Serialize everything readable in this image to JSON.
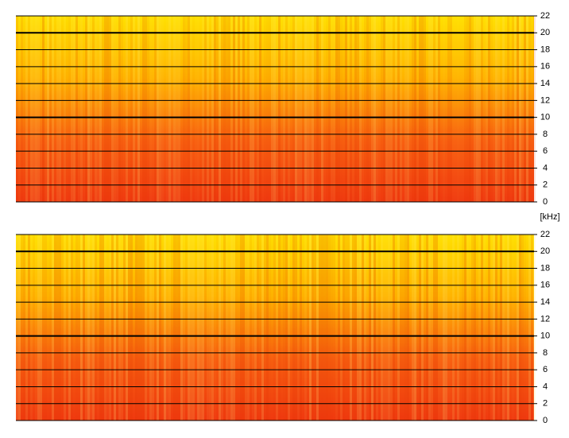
{
  "chart_data": [
    {
      "type": "spectrogram",
      "ylabel": "[kHz]",
      "ylim": [
        0,
        22
      ],
      "yticks": [
        0,
        2,
        4,
        6,
        8,
        10,
        12,
        14,
        16,
        18,
        20,
        22
      ],
      "grid": true,
      "colors": [
        "#ffe000",
        "#ffb400",
        "#f86010",
        "#f03a10"
      ]
    },
    {
      "type": "spectrogram",
      "ylim": [
        0,
        22
      ],
      "yticks": [
        0,
        2,
        4,
        6,
        8,
        10,
        12,
        14,
        16,
        18,
        20,
        22
      ],
      "grid": true,
      "colors": [
        "#ffe000",
        "#ffb400",
        "#f86010",
        "#f03a10"
      ]
    }
  ]
}
